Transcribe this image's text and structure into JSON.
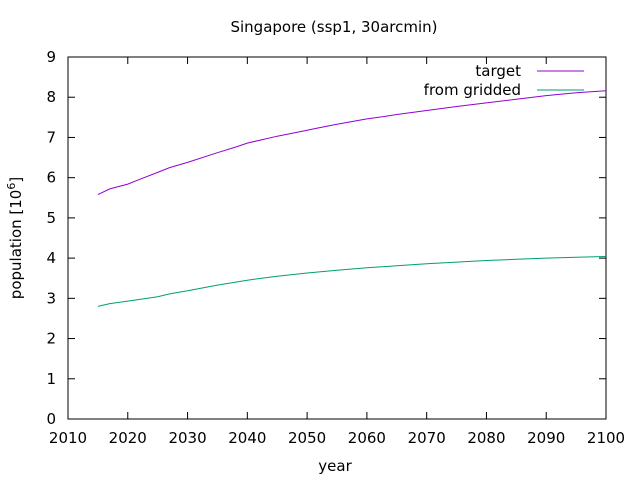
{
  "chart_data": {
    "type": "line",
    "title": "Singapore (ssp1, 30arcmin)",
    "xlabel": "year",
    "ylabel_main": "population [10",
    "ylabel_sup": "6",
    "ylabel_close": "]",
    "xlim": [
      2010,
      2100
    ],
    "ylim": [
      0,
      9
    ],
    "xticks": [
      2010,
      2020,
      2030,
      2040,
      2050,
      2060,
      2070,
      2080,
      2090,
      2100
    ],
    "yticks": [
      0,
      1,
      2,
      3,
      4,
      5,
      6,
      7,
      8,
      9
    ],
    "grid": false,
    "legend_position": "top-right",
    "series": [
      {
        "name": "target",
        "color": "#9400d3",
        "x": [
          2015,
          2017,
          2020,
          2022,
          2025,
          2027,
          2030,
          2035,
          2038,
          2040,
          2045,
          2050,
          2052,
          2055,
          2060,
          2062,
          2065,
          2070,
          2075,
          2080,
          2085,
          2090,
          2095,
          2100
        ],
        "y": [
          5.58,
          5.72,
          5.84,
          5.96,
          6.13,
          6.25,
          6.38,
          6.62,
          6.76,
          6.86,
          7.03,
          7.18,
          7.24,
          7.33,
          7.46,
          7.5,
          7.57,
          7.67,
          7.77,
          7.86,
          7.95,
          8.04,
          8.11,
          8.16
        ]
      },
      {
        "name": "from gridded",
        "color": "#009e73",
        "x": [
          2015,
          2017,
          2020,
          2025,
          2027,
          2030,
          2035,
          2040,
          2045,
          2050,
          2055,
          2060,
          2065,
          2070,
          2075,
          2080,
          2085,
          2090,
          2095,
          2100
        ],
        "y": [
          2.8,
          2.87,
          2.93,
          3.04,
          3.11,
          3.19,
          3.33,
          3.45,
          3.55,
          3.63,
          3.7,
          3.76,
          3.81,
          3.86,
          3.9,
          3.94,
          3.97,
          4.0,
          4.02,
          4.04
        ]
      }
    ]
  }
}
